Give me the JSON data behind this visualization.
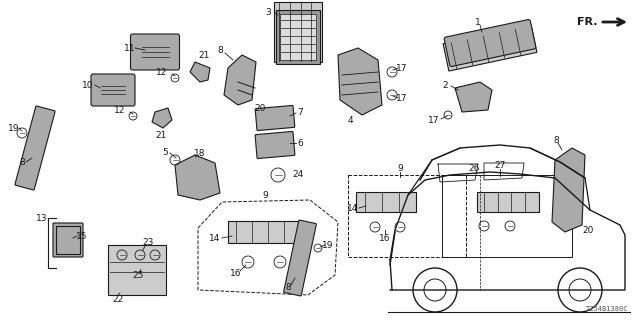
{
  "bg_color": "#ffffff",
  "diagram_color": "#1a1a1a",
  "part_code": "TZ54B1380C",
  "fr_label": "FR.",
  "lc": "#1a1a1a"
}
